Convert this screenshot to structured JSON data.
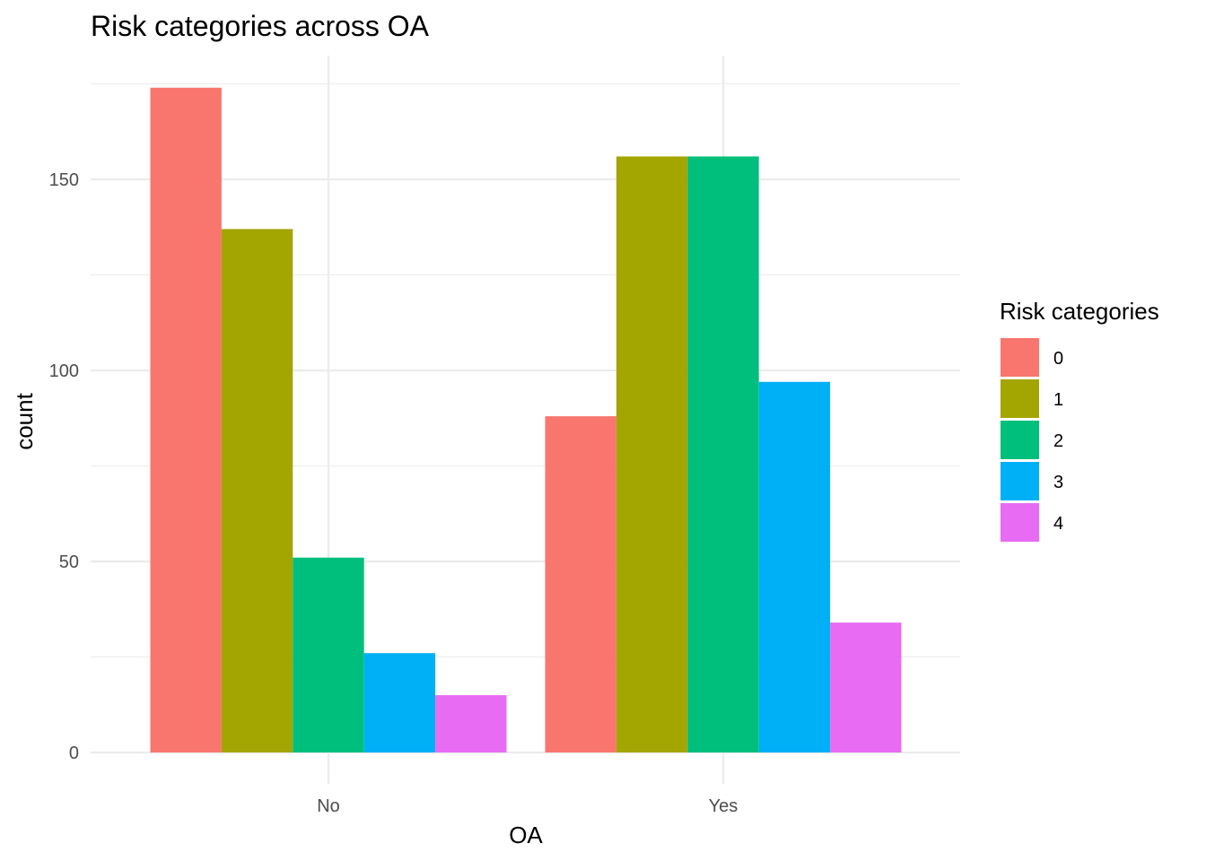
{
  "chart_data": {
    "type": "bar",
    "title": "Risk categories across OA",
    "xlabel": "OA",
    "ylabel": "count",
    "categories": [
      "No",
      "Yes"
    ],
    "legend_title": "Risk categories",
    "legend_position": "right",
    "grid": true,
    "ylim": [
      0,
      182
    ],
    "yticks": [
      0,
      50,
      100,
      150
    ],
    "series": [
      {
        "name": "0",
        "color": "#F8766D",
        "values": [
          174,
          88
        ]
      },
      {
        "name": "1",
        "color": "#A3A500",
        "values": [
          137,
          156
        ]
      },
      {
        "name": "2",
        "color": "#00BF7D",
        "values": [
          51,
          156
        ]
      },
      {
        "name": "3",
        "color": "#00B0F6",
        "values": [
          26,
          97
        ]
      },
      {
        "name": "4",
        "color": "#E76BF3",
        "values": [
          15,
          34
        ]
      }
    ]
  }
}
